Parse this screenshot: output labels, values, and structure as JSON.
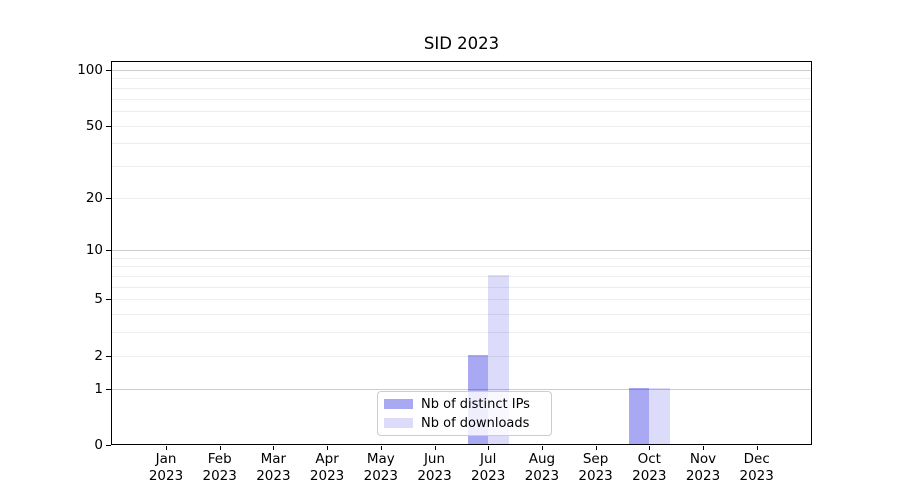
{
  "title": "SID 2023",
  "legend": {
    "items": [
      {
        "label": "Nb of distinct IPs"
      },
      {
        "label": "Nb of downloads"
      }
    ]
  },
  "chart_data": {
    "type": "bar",
    "title": "SID 2023",
    "months": [
      "Jan",
      "Feb",
      "Mar",
      "Apr",
      "May",
      "Jun",
      "Jul",
      "Aug",
      "Sep",
      "Oct",
      "Nov",
      "Dec"
    ],
    "year_label": "2023",
    "categories": [
      "Jan 2023",
      "Feb 2023",
      "Mar 2023",
      "Apr 2023",
      "May 2023",
      "Jun 2023",
      "Jul 2023",
      "Aug 2023",
      "Sep 2023",
      "Oct 2023",
      "Nov 2023",
      "Dec 2023"
    ],
    "series": [
      {
        "name": "Nb of distinct IPs",
        "color": "rgba(10,10,220,0.35)",
        "color_hex_on_white": "#a9a9f0",
        "values": [
          0,
          0,
          0,
          0,
          0,
          0,
          2,
          0,
          0,
          1,
          0,
          0
        ]
      },
      {
        "name": "Nb of downloads",
        "color": "rgba(10,10,220,0.14)",
        "color_hex_on_white": "#dcdcf7",
        "values": [
          0,
          0,
          0,
          0,
          0,
          0,
          7,
          0,
          0,
          1,
          0,
          0
        ]
      }
    ],
    "y_axis": {
      "scale": "symlog ln(1+v)",
      "tick_values": [
        0,
        1,
        2,
        5,
        10,
        20,
        50,
        100
      ],
      "major_grid_values": [
        1,
        10,
        100
      ],
      "minor_grid_values": [
        2,
        3,
        4,
        5,
        6,
        7,
        8,
        9,
        20,
        30,
        40,
        50,
        60,
        70,
        80,
        90
      ],
      "top_value": 110
    },
    "xlabel": "",
    "ylabel": "",
    "grid": "horizontal major+minor",
    "legend_position": "lower center inside plot",
    "colors": {
      "background": "#ffffff",
      "spine": "#000000",
      "grid_major": "#cccccc",
      "grid_minor": "#ededed",
      "text": "#000000",
      "legend_border": "#cccccc"
    }
  }
}
